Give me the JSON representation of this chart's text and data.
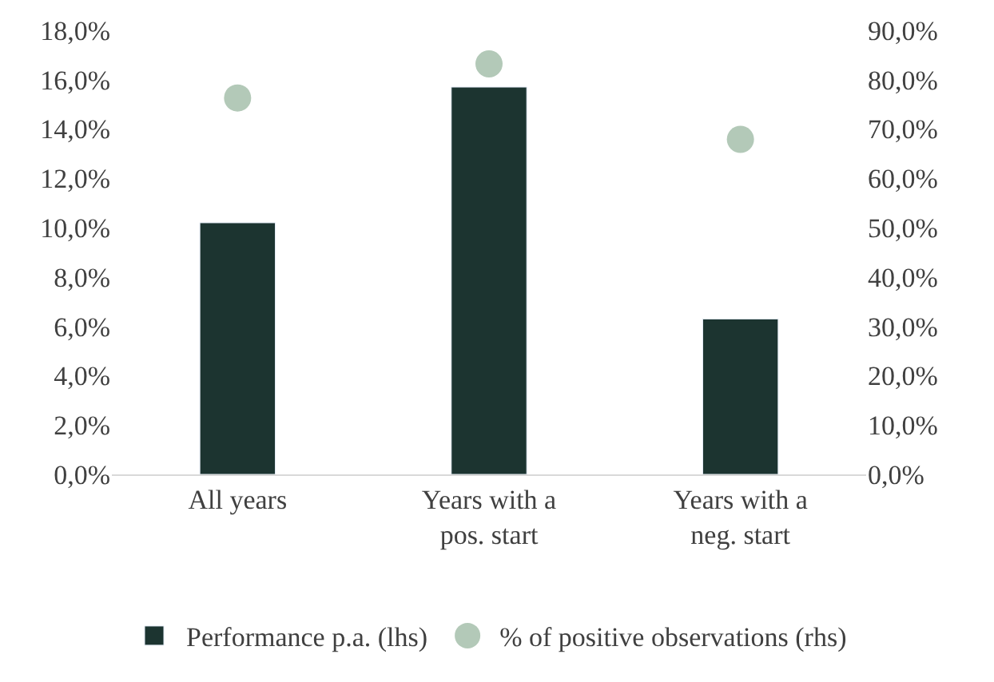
{
  "chart_data": {
    "type": "bar",
    "categories": [
      "All years",
      "Years with a pos. start",
      "Years with a neg. start"
    ],
    "series": [
      {
        "name": "Performance p.a. (lhs)",
        "color": "#1c3430",
        "values": [
          10.2,
          15.7,
          6.3
        ]
      },
      {
        "name": "% of positive observations (rhs)",
        "color": "#b3c9b8",
        "type": "scatter",
        "axis": "y2",
        "marker": "circle",
        "values": [
          76.3,
          83.2,
          67.9
        ]
      }
    ],
    "ylim": [
      0,
      18
    ],
    "yticks": [
      {
        "value": 0,
        "label": "0,0%"
      },
      {
        "value": 2,
        "label": "2,0%"
      },
      {
        "value": 4,
        "label": "4,0%"
      },
      {
        "value": 6,
        "label": "6,0%"
      },
      {
        "value": 8,
        "label": "8,0%"
      },
      {
        "value": 10,
        "label": "10,0%"
      },
      {
        "value": 12,
        "label": "12,0%"
      },
      {
        "value": 14,
        "label": "14,0%"
      },
      {
        "value": 16,
        "label": "16,0%"
      },
      {
        "value": 18,
        "label": "18,0%"
      }
    ],
    "y2lim": [
      0,
      90
    ],
    "y2ticks": [
      {
        "value": 0,
        "label": "0,0%"
      },
      {
        "value": 10,
        "label": "10,0%"
      },
      {
        "value": 20,
        "label": "20,0%"
      },
      {
        "value": 30,
        "label": "30,0%"
      },
      {
        "value": 40,
        "label": "40,0%"
      },
      {
        "value": 50,
        "label": "50,0%"
      },
      {
        "value": 60,
        "label": "60,0%"
      },
      {
        "value": 70,
        "label": "70,0%"
      },
      {
        "value": 80,
        "label": "80,0%"
      },
      {
        "value": 90,
        "label": "90,0%"
      }
    ],
    "legend": "bottom"
  }
}
